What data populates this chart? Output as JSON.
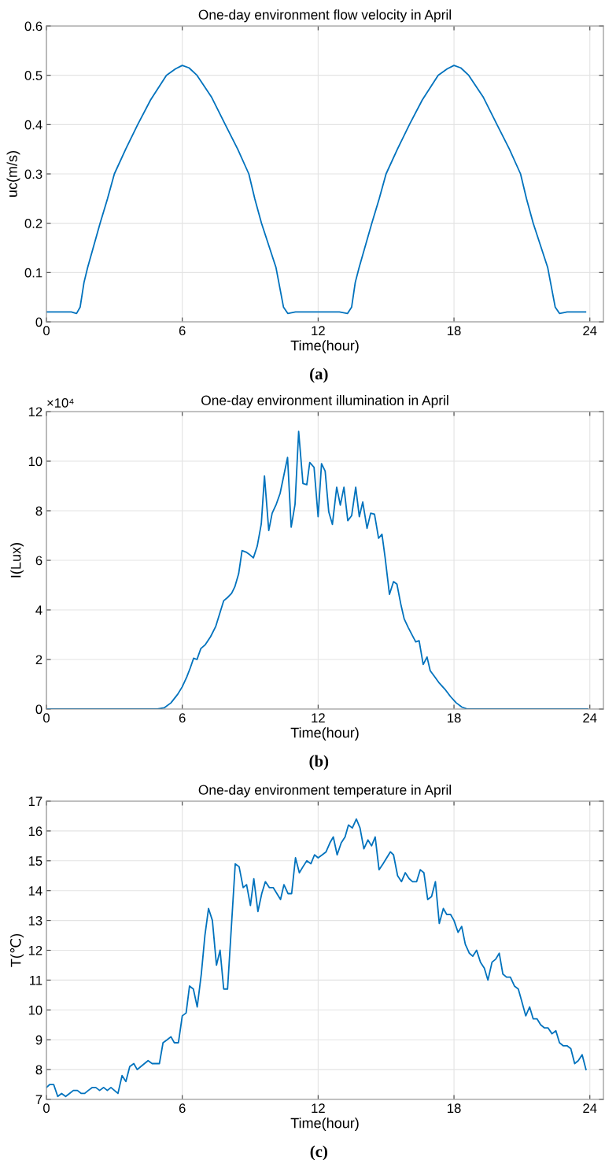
{
  "chart_data": [
    {
      "type": "line",
      "title": "One-day environment flow velocity in April",
      "xlabel": "Time(hour)",
      "ylabel": "uc(m/s)",
      "annotations": [
        "(a)"
      ],
      "xlim": [
        0,
        24.6
      ],
      "xticks": [
        0,
        6,
        12,
        18,
        24
      ],
      "ylim": [
        0,
        0.6
      ],
      "yticks": [
        0,
        0.1,
        0.2,
        0.3,
        0.4,
        0.5,
        0.6
      ],
      "grid": true,
      "series": [
        {
          "color": "#0072bd",
          "x": [
            0,
            0.6,
            1.1,
            1.33,
            1.49,
            1.66,
            1.82,
            2.37,
            2.7,
            3.0,
            3.5,
            4.03,
            4.6,
            5.3,
            5.7,
            6.0,
            6.3,
            6.65,
            7.3,
            7.9,
            8.45,
            8.94,
            9.2,
            9.5,
            10.14,
            10.47,
            10.66,
            11.0,
            12.0,
            12.94,
            13.3,
            13.48,
            13.64,
            13.81,
            14.37,
            14.7,
            15.0,
            15.5,
            16.03,
            16.6,
            17.3,
            17.7,
            18.0,
            18.3,
            18.65,
            19.3,
            19.9,
            20.45,
            20.94,
            21.2,
            21.5,
            22.14,
            22.47,
            22.66,
            23.0,
            23.81
          ],
          "values": [
            0.02,
            0.02,
            0.02,
            0.017,
            0.03,
            0.08,
            0.11,
            0.2,
            0.25,
            0.3,
            0.35,
            0.4,
            0.45,
            0.5,
            0.513,
            0.52,
            0.515,
            0.5,
            0.455,
            0.4,
            0.35,
            0.3,
            0.25,
            0.2,
            0.11,
            0.03,
            0.017,
            0.02,
            0.02,
            0.02,
            0.017,
            0.03,
            0.08,
            0.11,
            0.2,
            0.25,
            0.3,
            0.35,
            0.4,
            0.45,
            0.5,
            0.513,
            0.52,
            0.515,
            0.5,
            0.455,
            0.4,
            0.35,
            0.3,
            0.25,
            0.2,
            0.11,
            0.03,
            0.017,
            0.02,
            0.02
          ]
        }
      ]
    },
    {
      "type": "line",
      "title": "One-day environment illumination in April",
      "xlabel": "Time(hour)",
      "ylabel": "I(Lux)",
      "annotations": [
        "×10⁴",
        "(b)"
      ],
      "xlim": [
        0,
        24.6
      ],
      "xticks": [
        0,
        6,
        12,
        18,
        24
      ],
      "ylim": [
        0,
        12
      ],
      "yticks": [
        0,
        2,
        4,
        6,
        8,
        10,
        12
      ],
      "grid": true,
      "series": [
        {
          "color": "#0072bd",
          "x": [
            0,
            3,
            4.9,
            5.2,
            5.5,
            5.8,
            6.0,
            6.2,
            6.35,
            6.5,
            6.65,
            6.82,
            7.02,
            7.25,
            7.48,
            7.83,
            8.0,
            8.18,
            8.32,
            8.49,
            8.64,
            8.82,
            8.99,
            9.14,
            9.31,
            9.49,
            9.63,
            9.82,
            9.97,
            10.15,
            10.32,
            10.65,
            10.81,
            10.98,
            11.14,
            11.33,
            11.5,
            11.63,
            11.82,
            12.0,
            12.15,
            12.31,
            12.47,
            12.63,
            12.82,
            12.98,
            13.14,
            13.31,
            13.48,
            13.66,
            13.82,
            13.97,
            14.16,
            14.32,
            14.49,
            14.67,
            14.82,
            14.96,
            15.15,
            15.33,
            15.48,
            15.65,
            15.8,
            15.98,
            16.15,
            16.31,
            16.46,
            16.64,
            16.81,
            16.95,
            17.15,
            17.35,
            17.6,
            17.85,
            18.1,
            18.35,
            18.6,
            21,
            23.9
          ],
          "values": [
            0,
            0,
            0,
            0.05,
            0.25,
            0.6,
            0.9,
            1.3,
            1.65,
            2.05,
            2.0,
            2.44,
            2.6,
            2.92,
            3.34,
            4.37,
            4.5,
            4.67,
            4.93,
            5.46,
            6.39,
            6.33,
            6.22,
            6.1,
            6.57,
            7.47,
            9.4,
            7.2,
            7.9,
            8.26,
            8.7,
            10.15,
            7.34,
            8.26,
            11.2,
            9.1,
            9.05,
            9.95,
            9.75,
            7.76,
            9.9,
            9.6,
            7.95,
            7.45,
            8.95,
            8.23,
            8.95,
            7.6,
            7.8,
            8.95,
            7.76,
            8.35,
            7.29,
            7.9,
            7.86,
            6.89,
            7.05,
            6.1,
            4.63,
            5.14,
            5.04,
            4.24,
            3.64,
            3.29,
            2.99,
            2.71,
            2.76,
            1.8,
            2.1,
            1.55,
            1.3,
            1.05,
            0.8,
            0.5,
            0.25,
            0.08,
            0,
            0,
            0
          ]
        }
      ]
    },
    {
      "type": "line",
      "title": "One-day environment temperature in April",
      "xlabel": "Time(hour)",
      "ylabel": "T(℃)",
      "annotations": [
        "(c)"
      ],
      "xlim": [
        0,
        24.6
      ],
      "xticks": [
        0,
        6,
        12,
        18,
        24
      ],
      "ylim": [
        7,
        17
      ],
      "yticks": [
        7,
        8,
        9,
        10,
        11,
        12,
        13,
        14,
        15,
        16,
        17
      ],
      "grid": true,
      "series": [
        {
          "color": "#0072bd",
          "x": [
            0,
            0.15,
            0.32,
            0.5,
            0.67,
            0.85,
            1.02,
            1.19,
            1.37,
            1.54,
            1.69,
            1.85,
            2.03,
            2.18,
            2.35,
            2.53,
            2.69,
            2.85,
            3.16,
            3.34,
            3.51,
            3.68,
            3.86,
            4.01,
            4.17,
            4.33,
            4.49,
            4.67,
            4.99,
            5.15,
            5.33,
            5.5,
            5.65,
            5.83,
            6.0,
            6.17,
            6.32,
            6.49,
            6.66,
            6.84,
            7.0,
            7.16,
            7.33,
            7.51,
            7.67,
            7.83,
            8.0,
            8.34,
            8.51,
            8.69,
            8.84,
            9.01,
            9.16,
            9.34,
            9.51,
            9.67,
            9.85,
            10.02,
            10.34,
            10.49,
            10.67,
            10.83,
            11.0,
            11.17,
            11.33,
            11.5,
            11.68,
            11.84,
            12.0,
            12.18,
            12.35,
            12.52,
            12.67,
            12.84,
            13.02,
            13.19,
            13.34,
            13.51,
            13.69,
            13.85,
            14.02,
            14.2,
            14.36,
            14.52,
            14.69,
            14.87,
            15.19,
            15.33,
            15.51,
            15.68,
            15.85,
            16.02,
            16.17,
            16.35,
            16.51,
            16.67,
            16.84,
            17.01,
            17.18,
            17.35,
            17.53,
            17.68,
            17.85,
            18.0,
            18.18,
            18.34,
            18.5,
            18.68,
            18.83,
            19.0,
            19.17,
            19.34,
            19.5,
            19.68,
            19.84,
            20.0,
            20.16,
            20.32,
            20.49,
            20.67,
            20.84,
            20.99,
            21.17,
            21.34,
            21.5,
            21.67,
            21.83,
            21.99,
            22.15,
            22.33,
            22.5,
            22.66,
            22.82,
            22.99,
            23.16,
            23.33,
            23.49,
            23.66,
            23.83
          ],
          "values": [
            7.4,
            7.5,
            7.5,
            7.1,
            7.2,
            7.1,
            7.2,
            7.3,
            7.3,
            7.2,
            7.2,
            7.3,
            7.4,
            7.4,
            7.3,
            7.4,
            7.3,
            7.4,
            7.2,
            7.8,
            7.6,
            8.1,
            8.2,
            8.0,
            8.1,
            8.2,
            8.3,
            8.2,
            8.2,
            8.9,
            9.0,
            9.1,
            8.9,
            8.9,
            9.8,
            9.9,
            10.8,
            10.7,
            10.1,
            11.2,
            12.5,
            13.4,
            13.0,
            11.5,
            12.0,
            10.7,
            10.7,
            14.9,
            14.8,
            14.1,
            14.2,
            13.5,
            14.4,
            13.3,
            13.9,
            14.3,
            14.1,
            14.1,
            13.7,
            14.2,
            13.9,
            13.9,
            15.1,
            14.6,
            14.8,
            15.0,
            14.9,
            15.2,
            15.1,
            15.2,
            15.3,
            15.6,
            15.8,
            15.2,
            15.6,
            15.8,
            16.2,
            16.1,
            16.4,
            16.1,
            15.4,
            15.7,
            15.5,
            15.8,
            14.7,
            14.9,
            15.3,
            15.2,
            14.5,
            14.3,
            14.6,
            14.4,
            14.3,
            14.3,
            14.7,
            14.6,
            13.7,
            13.8,
            14.3,
            12.9,
            13.4,
            13.2,
            13.2,
            13.0,
            12.6,
            12.8,
            12.2,
            11.9,
            11.8,
            12.0,
            11.6,
            11.4,
            11.0,
            11.6,
            11.7,
            11.9,
            11.2,
            11.1,
            11.1,
            10.8,
            10.7,
            10.3,
            9.8,
            10.1,
            9.7,
            9.7,
            9.5,
            9.4,
            9.4,
            9.2,
            9.3,
            8.9,
            8.8,
            8.8,
            8.7,
            8.2,
            8.3,
            8.5,
            8.0
          ]
        }
      ]
    }
  ]
}
